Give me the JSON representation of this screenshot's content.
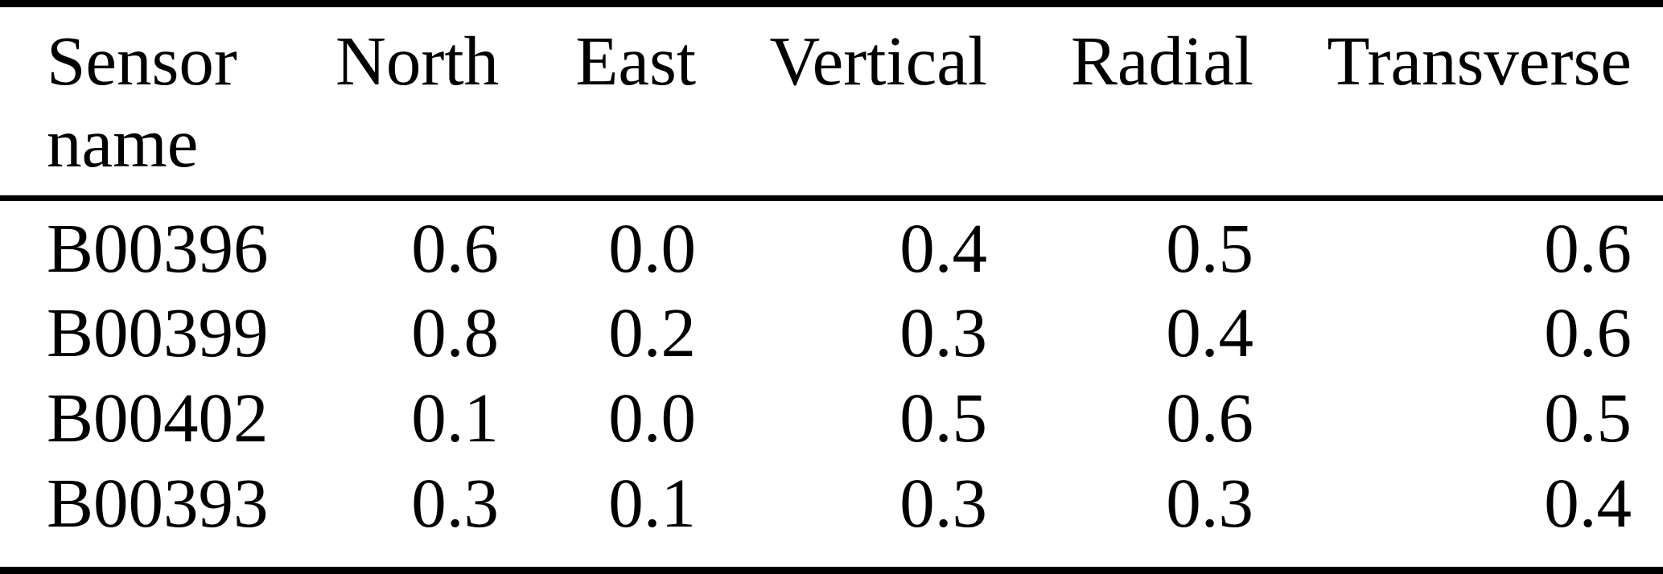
{
  "document": {
    "kind": "academic-paper-table"
  },
  "colors": {
    "background": "#ffffff",
    "text": "#000000",
    "rule": "#000000"
  },
  "chart_data": {
    "type": "table",
    "columns": [
      "Sensor name",
      "North",
      "East",
      "Vertical",
      "Radial",
      "Transverse"
    ],
    "rows": [
      [
        "B00396",
        "0.6",
        "0.0",
        "0.4",
        "0.5",
        "0.6"
      ],
      [
        "B00399",
        "0.8",
        "0.2",
        "0.3",
        "0.4",
        "0.6"
      ],
      [
        "B00402",
        "0.1",
        "0.0",
        "0.5",
        "0.6",
        "0.5"
      ],
      [
        "B00393",
        "0.3",
        "0.1",
        "0.3",
        "0.3",
        "0.4"
      ]
    ],
    "series": [
      {
        "name": "North",
        "values": [
          0.6,
          0.8,
          0.1,
          0.3
        ]
      },
      {
        "name": "East",
        "values": [
          0.0,
          0.2,
          0.0,
          0.1
        ]
      },
      {
        "name": "Vertical",
        "values": [
          0.4,
          0.3,
          0.5,
          0.3
        ]
      },
      {
        "name": "Radial",
        "values": [
          0.5,
          0.4,
          0.6,
          0.3
        ]
      },
      {
        "name": "Transverse",
        "values": [
          0.6,
          0.6,
          0.5,
          0.4
        ]
      }
    ],
    "row_key": "Sensor name",
    "row_labels": [
      "B00396",
      "B00399",
      "B00402",
      "B00393"
    ]
  }
}
